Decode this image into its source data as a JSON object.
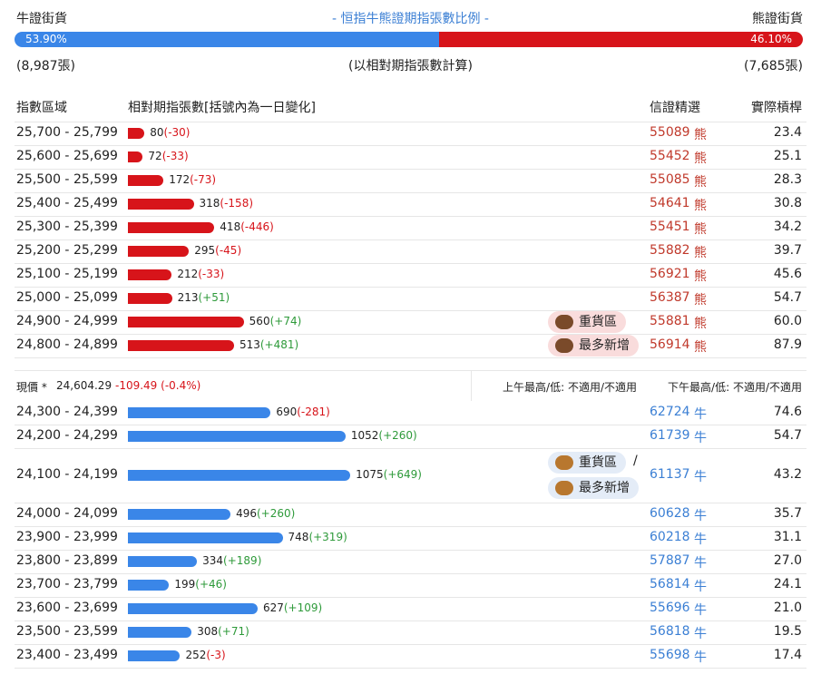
{
  "header": {
    "bull_label": "牛證街貨",
    "title": "- 恒指牛熊證期指張數比例 -",
    "bear_label": "熊證街貨",
    "ratio": {
      "bull": 53.9,
      "bull_label": "53.90%",
      "bear": 46.1,
      "bear_label": "46.10%"
    },
    "bull_count": "(8,987張)",
    "note": "(以相對期指張數計算)",
    "bear_count": "(7,685張)"
  },
  "columns": [
    "指數區域",
    "相對期指張數[括號內為一日變化]",
    "信證精選",
    "實際槓桿"
  ],
  "bear_rows": [
    {
      "range": "25,700 - 25,799",
      "count": 80,
      "change": "(-30)",
      "code": "55089",
      "kind": "熊",
      "leverage": "23.4"
    },
    {
      "range": "25,600 - 25,699",
      "count": 72,
      "change": "(-33)",
      "code": "55452",
      "kind": "熊",
      "leverage": "25.1"
    },
    {
      "range": "25,500 - 25,599",
      "count": 172,
      "change": "(-73)",
      "code": "55085",
      "kind": "熊",
      "leverage": "28.3"
    },
    {
      "range": "25,400 - 25,499",
      "count": 318,
      "change": "(-158)",
      "code": "54641",
      "kind": "熊",
      "leverage": "30.8"
    },
    {
      "range": "25,300 - 25,399",
      "count": 418,
      "change": "(-446)",
      "code": "55451",
      "kind": "熊",
      "leverage": "34.2"
    },
    {
      "range": "25,200 - 25,299",
      "count": 295,
      "change": "(-45)",
      "code": "55882",
      "kind": "熊",
      "leverage": "39.7"
    },
    {
      "range": "25,100 - 25,199",
      "count": 212,
      "change": "(-33)",
      "code": "56921",
      "kind": "熊",
      "leverage": "45.6"
    },
    {
      "range": "25,000 - 25,099",
      "count": 213,
      "change": "(+51)",
      "code": "56387",
      "kind": "熊",
      "leverage": "54.7"
    },
    {
      "range": "24,900 - 24,999",
      "count": 560,
      "change": "(+74)",
      "code": "55881",
      "kind": "熊",
      "leverage": "60.0",
      "badges": [
        "重貨區"
      ]
    },
    {
      "range": "24,800 - 24,899",
      "count": 513,
      "change": "(+481)",
      "code": "56914",
      "kind": "熊",
      "leverage": "87.9",
      "badges": [
        "最多新增"
      ]
    }
  ],
  "price": {
    "label": "現價 *",
    "value": "24,604.29",
    "change": "-109.49 (-0.4%)",
    "am": "上午最高/低: 不適用/不適用",
    "pm": "下午最高/低: 不適用/不適用"
  },
  "bull_rows": [
    {
      "range": "24,300 - 24,399",
      "count": 690,
      "change": "(-281)",
      "code": "62724",
      "kind": "牛",
      "leverage": "74.6"
    },
    {
      "range": "24,200 - 24,299",
      "count": 1052,
      "change": "(+260)",
      "code": "61739",
      "kind": "牛",
      "leverage": "54.7"
    },
    {
      "range": "24,100 - 24,199",
      "count": 1075,
      "change": "(+649)",
      "code": "61137",
      "kind": "牛",
      "leverage": "43.2",
      "badges": [
        "重貨區",
        "最多新增"
      ],
      "separator": "/"
    },
    {
      "range": "24,000 - 24,099",
      "count": 496,
      "change": "(+260)",
      "code": "60628",
      "kind": "牛",
      "leverage": "35.7"
    },
    {
      "range": "23,900 - 23,999",
      "count": 748,
      "change": "(+319)",
      "code": "60218",
      "kind": "牛",
      "leverage": "31.1"
    },
    {
      "range": "23,800 - 23,899",
      "count": 334,
      "change": "(+189)",
      "code": "57887",
      "kind": "牛",
      "leverage": "27.0"
    },
    {
      "range": "23,700 - 23,799",
      "count": 199,
      "change": "(+46)",
      "code": "56814",
      "kind": "牛",
      "leverage": "24.1"
    },
    {
      "range": "23,600 - 23,699",
      "count": 627,
      "change": "(+109)",
      "code": "55696",
      "kind": "牛",
      "leverage": "21.0"
    },
    {
      "range": "23,500 - 23,599",
      "count": 308,
      "change": "(+71)",
      "code": "56818",
      "kind": "牛",
      "leverage": "19.5"
    },
    {
      "range": "23,400 - 23,499",
      "count": 252,
      "change": "(-3)",
      "code": "55698",
      "kind": "牛",
      "leverage": "17.4"
    }
  ]
}
